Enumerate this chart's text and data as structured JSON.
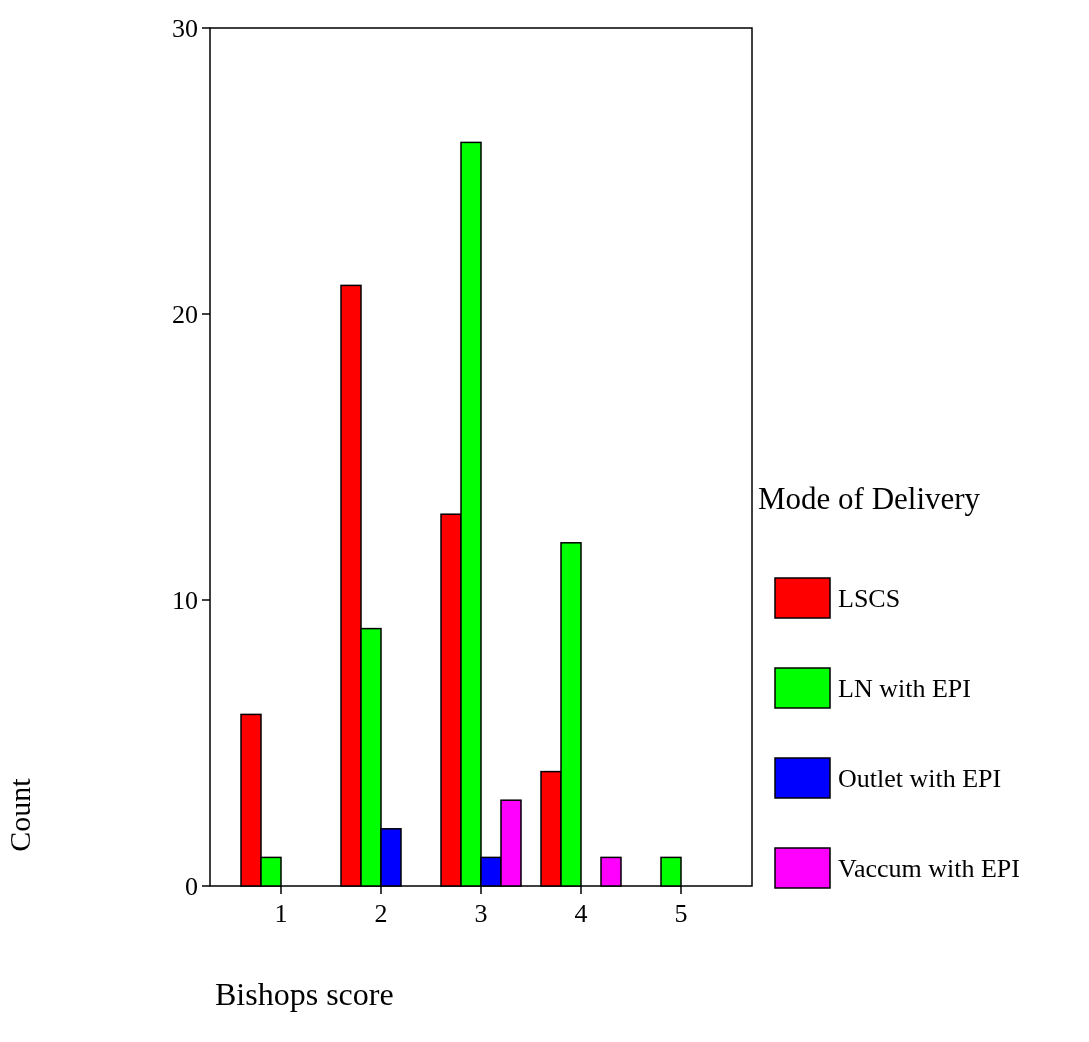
{
  "chart_data": {
    "type": "bar",
    "xlabel": "Bishops score",
    "ylabel": "Count",
    "legend_title": "Mode of Delivery",
    "legend": "right",
    "categories": [
      "1",
      "2",
      "3",
      "4",
      "5"
    ],
    "series": [
      {
        "name": "LSCS",
        "color": "#ff0000",
        "values": [
          6,
          21,
          13,
          4,
          0
        ]
      },
      {
        "name": "LN with EPI",
        "color": "#00ff00",
        "values": [
          1,
          9,
          26,
          12,
          1
        ]
      },
      {
        "name": "Outlet with EPI",
        "color": "#0000ff",
        "values": [
          0,
          2,
          1,
          0,
          0
        ]
      },
      {
        "name": "Vaccum with EPI",
        "color": "#ff00ff",
        "values": [
          0,
          0,
          3,
          1,
          0
        ]
      }
    ],
    "ylim": [
      0,
      30
    ],
    "yticks": [
      0,
      10,
      20,
      30
    ]
  }
}
